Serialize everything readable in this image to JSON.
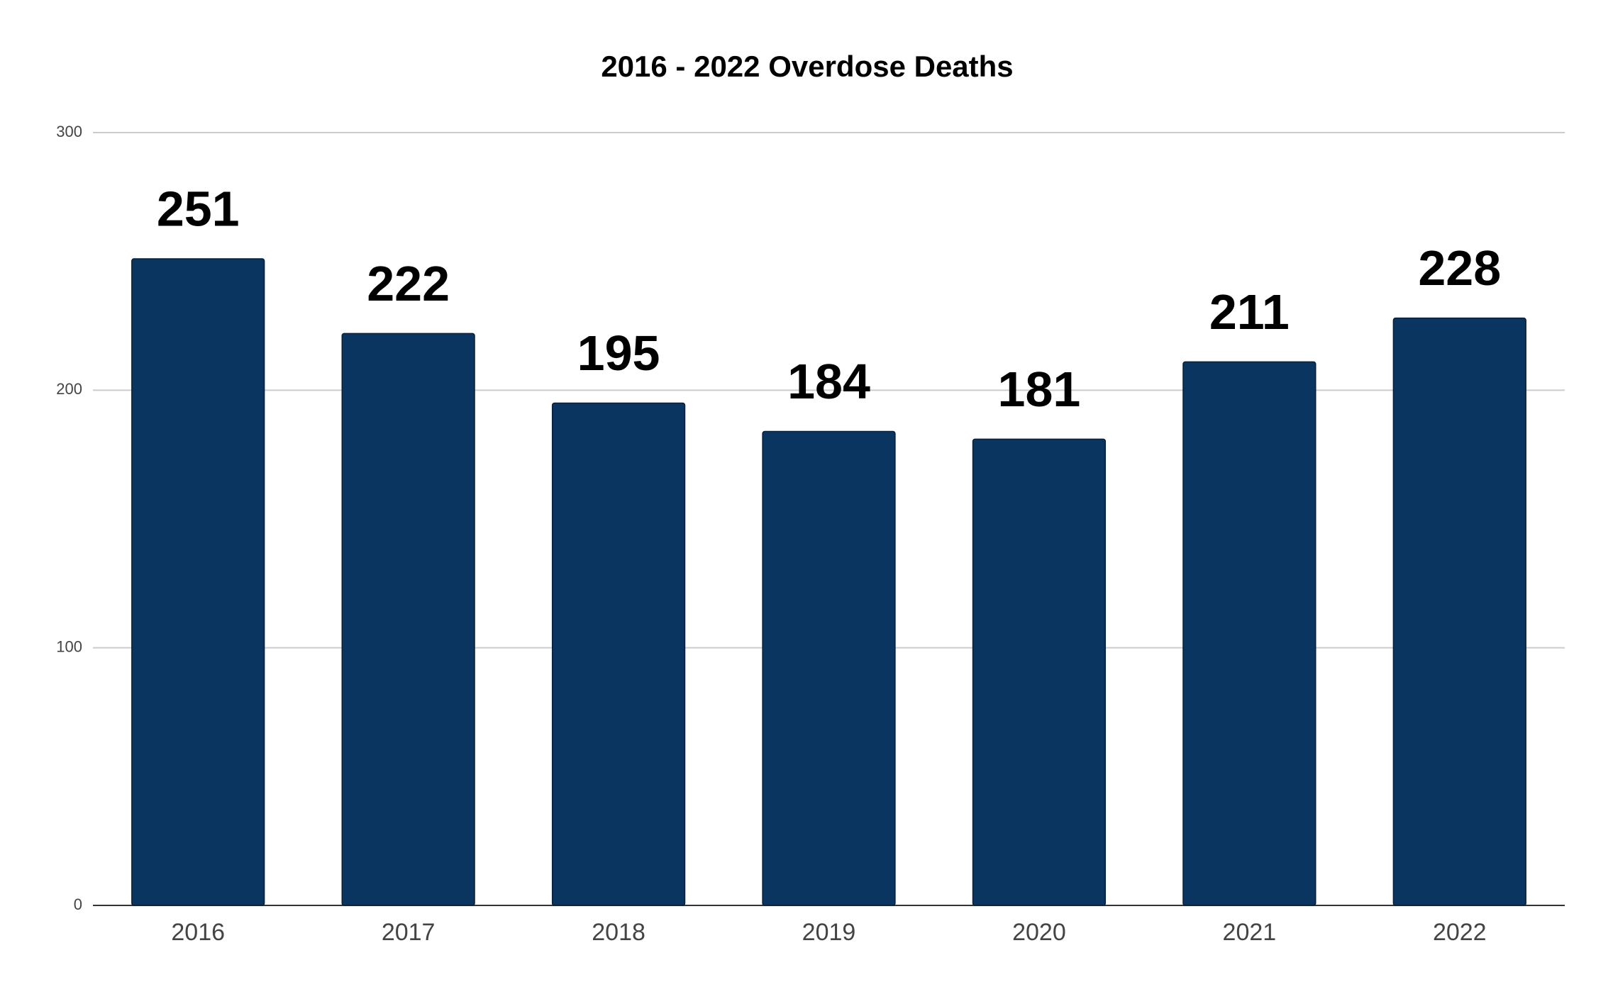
{
  "chart_data": {
    "type": "bar",
    "title": "2016 - 2022 Overdose Deaths",
    "categories": [
      "2016",
      "2017",
      "2018",
      "2019",
      "2020",
      "2021",
      "2022"
    ],
    "values": [
      251,
      222,
      195,
      184,
      181,
      211,
      228
    ],
    "color": "#0a3560",
    "ylim": [
      0,
      300
    ],
    "yticks": [
      0,
      100,
      200,
      300
    ],
    "grid": true
  }
}
